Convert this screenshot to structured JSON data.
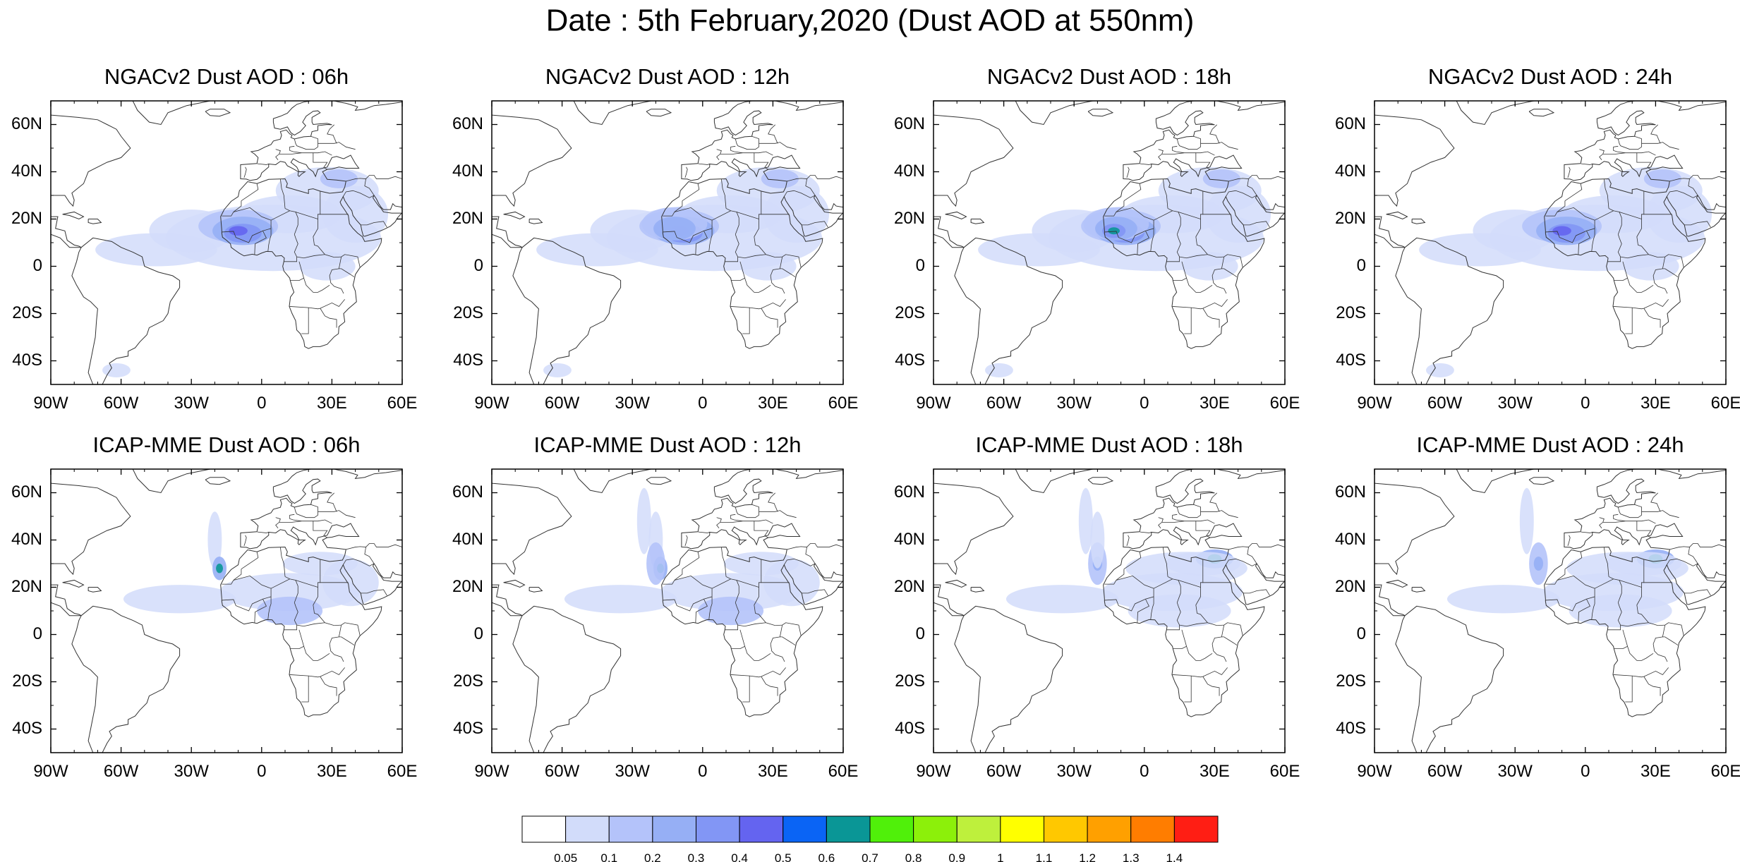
{
  "figure": {
    "title": "Date : 5th February,2020 (Dust AOD at 550nm)"
  },
  "panels": [
    {
      "title": "NGACv2 Dust AOD : 06h",
      "model": "NGACv2",
      "hour": "06h"
    },
    {
      "title": "NGACv2 Dust AOD : 12h",
      "model": "NGACv2",
      "hour": "12h"
    },
    {
      "title": "NGACv2 Dust AOD : 18h",
      "model": "NGACv2",
      "hour": "18h"
    },
    {
      "title": "NGACv2 Dust AOD : 24h",
      "model": "NGACv2",
      "hour": "24h"
    },
    {
      "title": "ICAP-MME Dust AOD : 06h",
      "model": "ICAP-MME",
      "hour": "06h"
    },
    {
      "title": "ICAP-MME Dust AOD : 12h",
      "model": "ICAP-MME",
      "hour": "12h"
    },
    {
      "title": "ICAP-MME Dust AOD : 18h",
      "model": "ICAP-MME",
      "hour": "18h"
    },
    {
      "title": "ICAP-MME Dust AOD : 24h",
      "model": "ICAP-MME",
      "hour": "24h"
    }
  ],
  "map_axes": {
    "lon_range": [
      -90,
      60
    ],
    "lat_range": [
      -50,
      70
    ],
    "x_ticks": [
      {
        "value": -90,
        "label": "90W"
      },
      {
        "value": -60,
        "label": "60W"
      },
      {
        "value": -30,
        "label": "30W"
      },
      {
        "value": 0,
        "label": "0"
      },
      {
        "value": 30,
        "label": "30E"
      },
      {
        "value": 60,
        "label": "60E"
      }
    ],
    "y_ticks": [
      {
        "value": 60,
        "label": "60N"
      },
      {
        "value": 40,
        "label": "40N"
      },
      {
        "value": 20,
        "label": "20N"
      },
      {
        "value": 0,
        "label": "0"
      },
      {
        "value": -20,
        "label": "20S"
      },
      {
        "value": -40,
        "label": "40S"
      }
    ]
  },
  "colorbar": {
    "labels": [
      "0.05",
      "0.1",
      "0.2",
      "0.3",
      "0.4",
      "0.5",
      "0.6",
      "0.7",
      "0.8",
      "0.9",
      "1",
      "1.1",
      "1.2",
      "1.3",
      "1.4"
    ],
    "colors": [
      "#ffffff",
      "#d2dcfa",
      "#b4c3fa",
      "#96aff5",
      "#8296f5",
      "#6464f0",
      "#0a64f5",
      "#0a9696",
      "#50f00a",
      "#8cf00a",
      "#bef03c",
      "#ffff00",
      "#ffc800",
      "#ffa000",
      "#ff7d00",
      "#ff1e14"
    ]
  },
  "colors": {
    "land_outline": "#333333",
    "axis": "#000000"
  }
}
